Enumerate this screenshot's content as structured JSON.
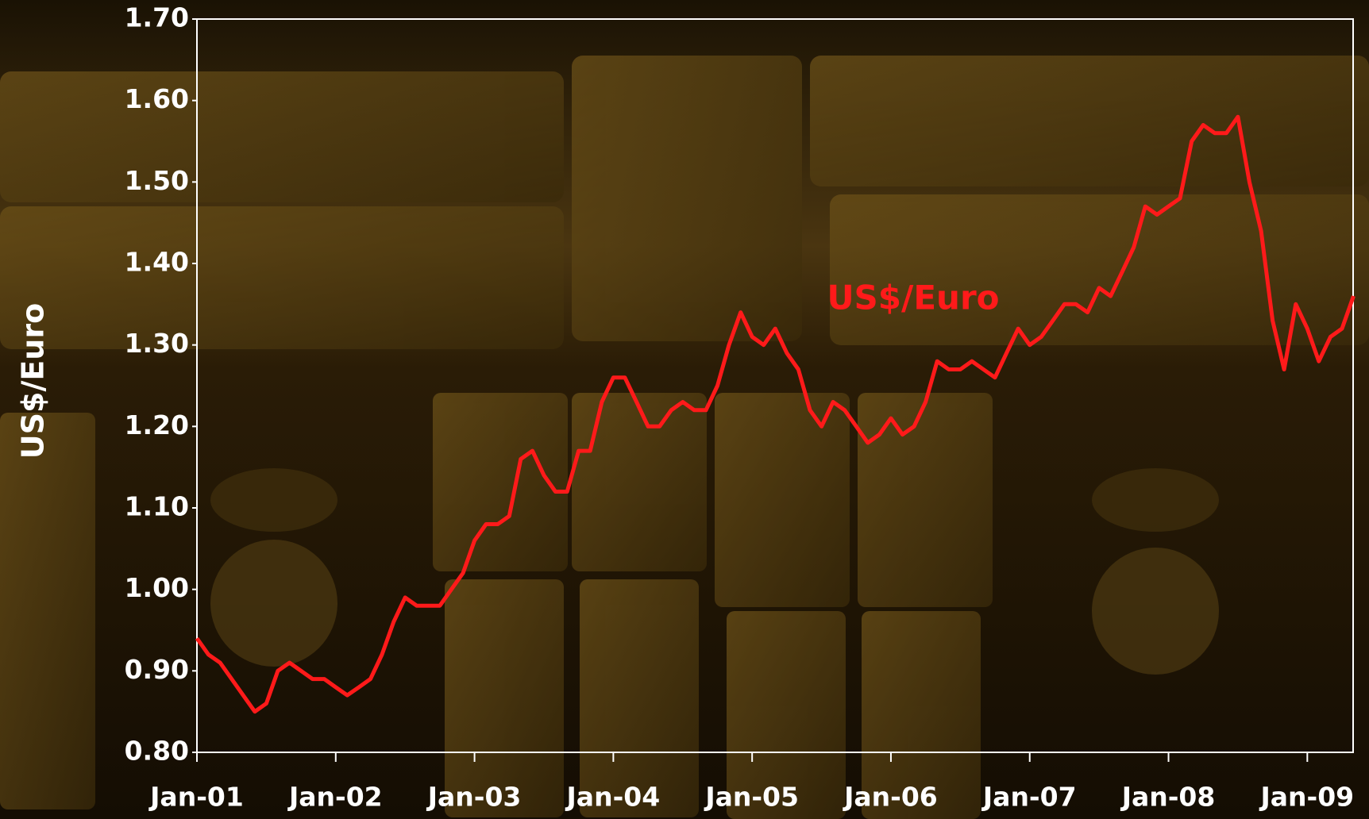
{
  "chart_data": {
    "type": "line",
    "y_label": "US$/Euro",
    "annotation": "US$/Euro",
    "x": [
      2001.0,
      2001.083,
      2001.167,
      2001.25,
      2001.333,
      2001.417,
      2001.5,
      2001.583,
      2001.667,
      2001.75,
      2001.833,
      2001.917,
      2002.0,
      2002.083,
      2002.167,
      2002.25,
      2002.333,
      2002.417,
      2002.5,
      2002.583,
      2002.667,
      2002.75,
      2002.833,
      2002.917,
      2003.0,
      2003.083,
      2003.167,
      2003.25,
      2003.333,
      2003.417,
      2003.5,
      2003.583,
      2003.667,
      2003.75,
      2003.833,
      2003.917,
      2004.0,
      2004.083,
      2004.167,
      2004.25,
      2004.333,
      2004.417,
      2004.5,
      2004.583,
      2004.667,
      2004.75,
      2004.833,
      2004.917,
      2005.0,
      2005.083,
      2005.167,
      2005.25,
      2005.333,
      2005.417,
      2005.5,
      2005.583,
      2005.667,
      2005.75,
      2005.833,
      2005.917,
      2006.0,
      2006.083,
      2006.167,
      2006.25,
      2006.333,
      2006.417,
      2006.5,
      2006.583,
      2006.667,
      2006.75,
      2006.833,
      2006.917,
      2007.0,
      2007.083,
      2007.167,
      2007.25,
      2007.333,
      2007.417,
      2007.5,
      2007.583,
      2007.667,
      2007.75,
      2007.833,
      2007.917,
      2008.0,
      2008.083,
      2008.167,
      2008.25,
      2008.333,
      2008.417,
      2008.5,
      2008.583,
      2008.667,
      2008.75,
      2008.833,
      2008.917,
      2009.0,
      2009.083,
      2009.167,
      2009.25,
      2009.333
    ],
    "series": [
      {
        "name": "US$/Euro",
        "color": "#ff1a1a",
        "values": [
          0.94,
          0.92,
          0.91,
          0.89,
          0.87,
          0.85,
          0.86,
          0.9,
          0.91,
          0.9,
          0.89,
          0.89,
          0.88,
          0.87,
          0.88,
          0.89,
          0.92,
          0.96,
          0.99,
          0.98,
          0.98,
          0.98,
          1.0,
          1.02,
          1.06,
          1.08,
          1.08,
          1.09,
          1.16,
          1.17,
          1.14,
          1.12,
          1.12,
          1.17,
          1.17,
          1.23,
          1.26,
          1.26,
          1.23,
          1.2,
          1.2,
          1.22,
          1.23,
          1.22,
          1.22,
          1.25,
          1.3,
          1.34,
          1.31,
          1.3,
          1.32,
          1.29,
          1.27,
          1.22,
          1.2,
          1.23,
          1.22,
          1.2,
          1.18,
          1.19,
          1.21,
          1.19,
          1.2,
          1.23,
          1.28,
          1.27,
          1.27,
          1.28,
          1.27,
          1.26,
          1.29,
          1.32,
          1.3,
          1.31,
          1.33,
          1.35,
          1.35,
          1.34,
          1.37,
          1.36,
          1.39,
          1.42,
          1.47,
          1.46,
          1.47,
          1.48,
          1.55,
          1.57,
          1.56,
          1.56,
          1.58,
          1.5,
          1.44,
          1.33,
          1.27,
          1.35,
          1.32,
          1.28,
          1.31,
          1.32,
          1.36
        ]
      }
    ],
    "xlim": [
      2001,
      2009.33
    ],
    "xticks": [
      {
        "value": 2001,
        "label": "Jan-01"
      },
      {
        "value": 2002,
        "label": "Jan-02"
      },
      {
        "value": 2003,
        "label": "Jan-03"
      },
      {
        "value": 2004,
        "label": "Jan-04"
      },
      {
        "value": 2005,
        "label": "Jan-05"
      },
      {
        "value": 2006,
        "label": "Jan-06"
      },
      {
        "value": 2007,
        "label": "Jan-07"
      },
      {
        "value": 2008,
        "label": "Jan-08"
      },
      {
        "value": 2009,
        "label": "Jan-09"
      }
    ],
    "ylim": [
      0.8,
      1.7
    ],
    "yticks": [
      {
        "value": 0.8,
        "label": "0.80"
      },
      {
        "value": 0.9,
        "label": "0.90"
      },
      {
        "value": 1.0,
        "label": "1.00"
      },
      {
        "value": 1.1,
        "label": "1.10"
      },
      {
        "value": 1.2,
        "label": "1.20"
      },
      {
        "value": 1.3,
        "label": "1.30"
      },
      {
        "value": 1.4,
        "label": "1.40"
      },
      {
        "value": 1.5,
        "label": "1.50"
      },
      {
        "value": 1.6,
        "label": "1.60"
      },
      {
        "value": 1.7,
        "label": "1.70"
      }
    ]
  }
}
